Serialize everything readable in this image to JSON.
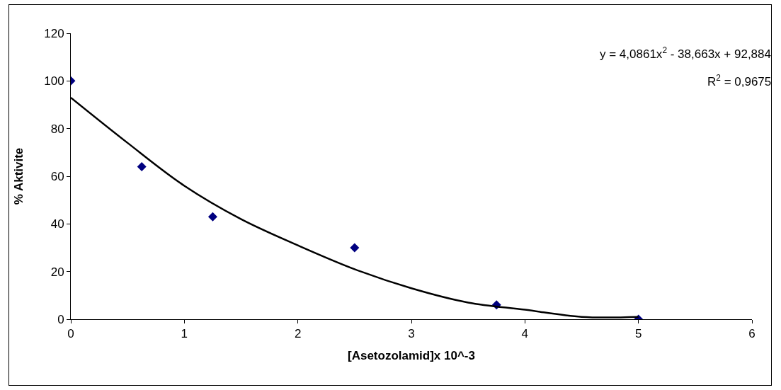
{
  "chart_data": {
    "type": "scatter",
    "xlabel": "[Asetozolamid]x 10^-3",
    "ylabel": "% Aktivite",
    "x": [
      0,
      0.625,
      1.25,
      2.5,
      3.75,
      5
    ],
    "series": [
      {
        "color": "#000080",
        "marker": "diamond",
        "values": [
          100,
          64,
          43,
          30,
          6,
          0
        ]
      },
      {
        "type": "line",
        "color": "#000000",
        "marker": "none",
        "x": [
          0,
          0.5,
          1,
          1.5,
          2,
          2.5,
          3,
          3.5,
          4,
          4.5,
          5
        ],
        "values": [
          93,
          74,
          56,
          42,
          31,
          21,
          13,
          7,
          4,
          1,
          1
        ]
      }
    ],
    "annotations": [
      "y = 4,0861x$^{2}$ - 38,663x + 92,884",
      "R$^{2}$ = 0,9675"
    ],
    "xlim": [
      0,
      6
    ],
    "xticks": [
      0,
      1,
      2,
      3,
      4,
      5,
      6
    ],
    "ylim": [
      0,
      120
    ],
    "yticks": [
      0,
      20,
      40,
      60,
      80,
      100,
      120
    ],
    "grid": false
  }
}
